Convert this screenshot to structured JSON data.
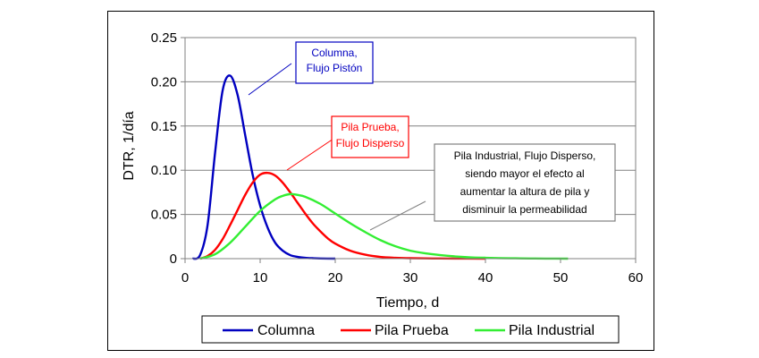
{
  "chart_data": {
    "type": "line",
    "xlabel": "Tiempo, d",
    "ylabel": "DTR, 1/día",
    "xlim": [
      0,
      60
    ],
    "ylim": [
      0,
      0.25
    ],
    "x_ticks": [
      "0",
      "10",
      "20",
      "30",
      "40",
      "50",
      "60"
    ],
    "y_ticks": [
      "0",
      "0.05",
      "0.10",
      "0.15",
      "0.20",
      "0.25"
    ],
    "grid": "horizontal",
    "legend": "bottom",
    "series": [
      {
        "name": "Columna",
        "color": "#0000C0",
        "x": [
          1,
          2,
          3,
          4,
          5,
          6,
          7,
          8,
          9,
          10,
          11,
          12,
          13,
          14,
          15,
          16,
          17,
          18,
          20
        ],
        "values": [
          0.0,
          0.004,
          0.038,
          0.12,
          0.19,
          0.207,
          0.185,
          0.14,
          0.095,
          0.06,
          0.035,
          0.018,
          0.009,
          0.004,
          0.002,
          0.001,
          0.0005,
          0.0002,
          0.0
        ]
      },
      {
        "name": "Pila Prueba",
        "color": "#FF0000",
        "x": [
          2,
          3,
          4,
          5,
          6,
          7,
          8,
          9,
          10,
          11,
          12,
          13,
          14,
          15,
          16,
          17,
          18,
          19,
          20,
          22,
          24,
          26,
          28,
          30,
          33,
          36,
          40
        ],
        "values": [
          0.0,
          0.003,
          0.01,
          0.022,
          0.038,
          0.055,
          0.072,
          0.086,
          0.095,
          0.097,
          0.094,
          0.086,
          0.075,
          0.063,
          0.051,
          0.04,
          0.031,
          0.023,
          0.017,
          0.009,
          0.0045,
          0.002,
          0.001,
          0.0005,
          0.0002,
          0.0001,
          0.0
        ]
      },
      {
        "name": "Pila Industrial",
        "color": "#33EE33",
        "x": [
          2,
          4,
          6,
          8,
          10,
          12,
          13,
          14,
          15,
          16,
          18,
          20,
          22,
          24,
          26,
          28,
          30,
          32,
          34,
          36,
          38,
          40,
          42,
          44,
          46,
          48,
          51
        ],
        "values": [
          0.0,
          0.005,
          0.018,
          0.036,
          0.054,
          0.067,
          0.071,
          0.073,
          0.072,
          0.07,
          0.062,
          0.051,
          0.04,
          0.03,
          0.021,
          0.014,
          0.009,
          0.006,
          0.004,
          0.0025,
          0.0015,
          0.001,
          0.0006,
          0.0004,
          0.0002,
          0.0001,
          0.0
        ]
      }
    ],
    "annotations": [
      {
        "lines": [
          "Columna,",
          "Flujo Pistón"
        ],
        "color": "#0000C0",
        "border": "#0000C0"
      },
      {
        "lines": [
          "Pila Prueba,",
          "Flujo Disperso"
        ],
        "color": "#FF0000",
        "border": "#FF0000"
      },
      {
        "lines": [
          "Pila Industrial, Flujo Disperso,",
          "siendo mayor el efecto al",
          "aumentar la altura de pila y",
          "disminuir la permeabilidad"
        ],
        "color": "#000000",
        "border": "#808080"
      }
    ]
  }
}
